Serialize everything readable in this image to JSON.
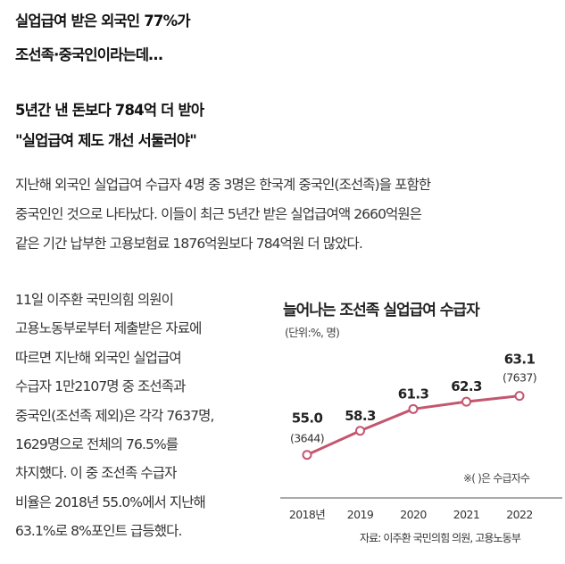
{
  "headlines": {
    "line1": "실업급여 받은 외국인 77%가",
    "line2": "조선족·중국인이라는데…",
    "line3": "5년간 낸 돈보다 784억 더 받아",
    "line4": "\"실업급여 제도 개선 서둘러야\""
  },
  "paragraph1": [
    "지난해 외국인 실업급여 수급자 4명 중 3명은 한국계 중국인(조선족)을 포함한",
    "중국인인 것으로 나타났다. 이들이 최근 5년간 받은 실업급여액 2660억원은",
    "같은 기간 납부한 고용보험료 1876억원보다 784억원 더 많았다."
  ],
  "paragraph2": [
    "11일 이주환 국민의힘 의원이",
    "고용노동부로부터 제출받은 자료에",
    "따르면 지난해 외국인 실업급여",
    "수급자 1만2107명 중 조선족과",
    "중국인(조선족 제외)은 각각 7637명,",
    "1629명으로 전체의 76.5%를",
    "차지했다. 이 중 조선족 수급자",
    "비율은 2018년 55.0%에서 지난해",
    "63.1%로 8%포인트 급등했다."
  ],
  "chart_data": {
    "type": "line",
    "title": "늘어나는 조선족 실업급여 수급자",
    "unit": "(단위:%, 명)",
    "categories": [
      "2018년",
      "2019",
      "2020",
      "2021",
      "2022"
    ],
    "values": [
      55.0,
      58.3,
      61.3,
      62.3,
      63.1
    ],
    "value_labels": [
      "55.0",
      "58.3",
      "61.3",
      "62.3",
      "63.1"
    ],
    "counts": [
      "(3644)",
      "(7637)"
    ],
    "note": "※( )은 수급자수",
    "source": "자료: 이주환 국민의힘 의원, 고용노동부",
    "line_color": "#c4566f",
    "ylim": [
      53,
      66
    ],
    "grid": false
  }
}
